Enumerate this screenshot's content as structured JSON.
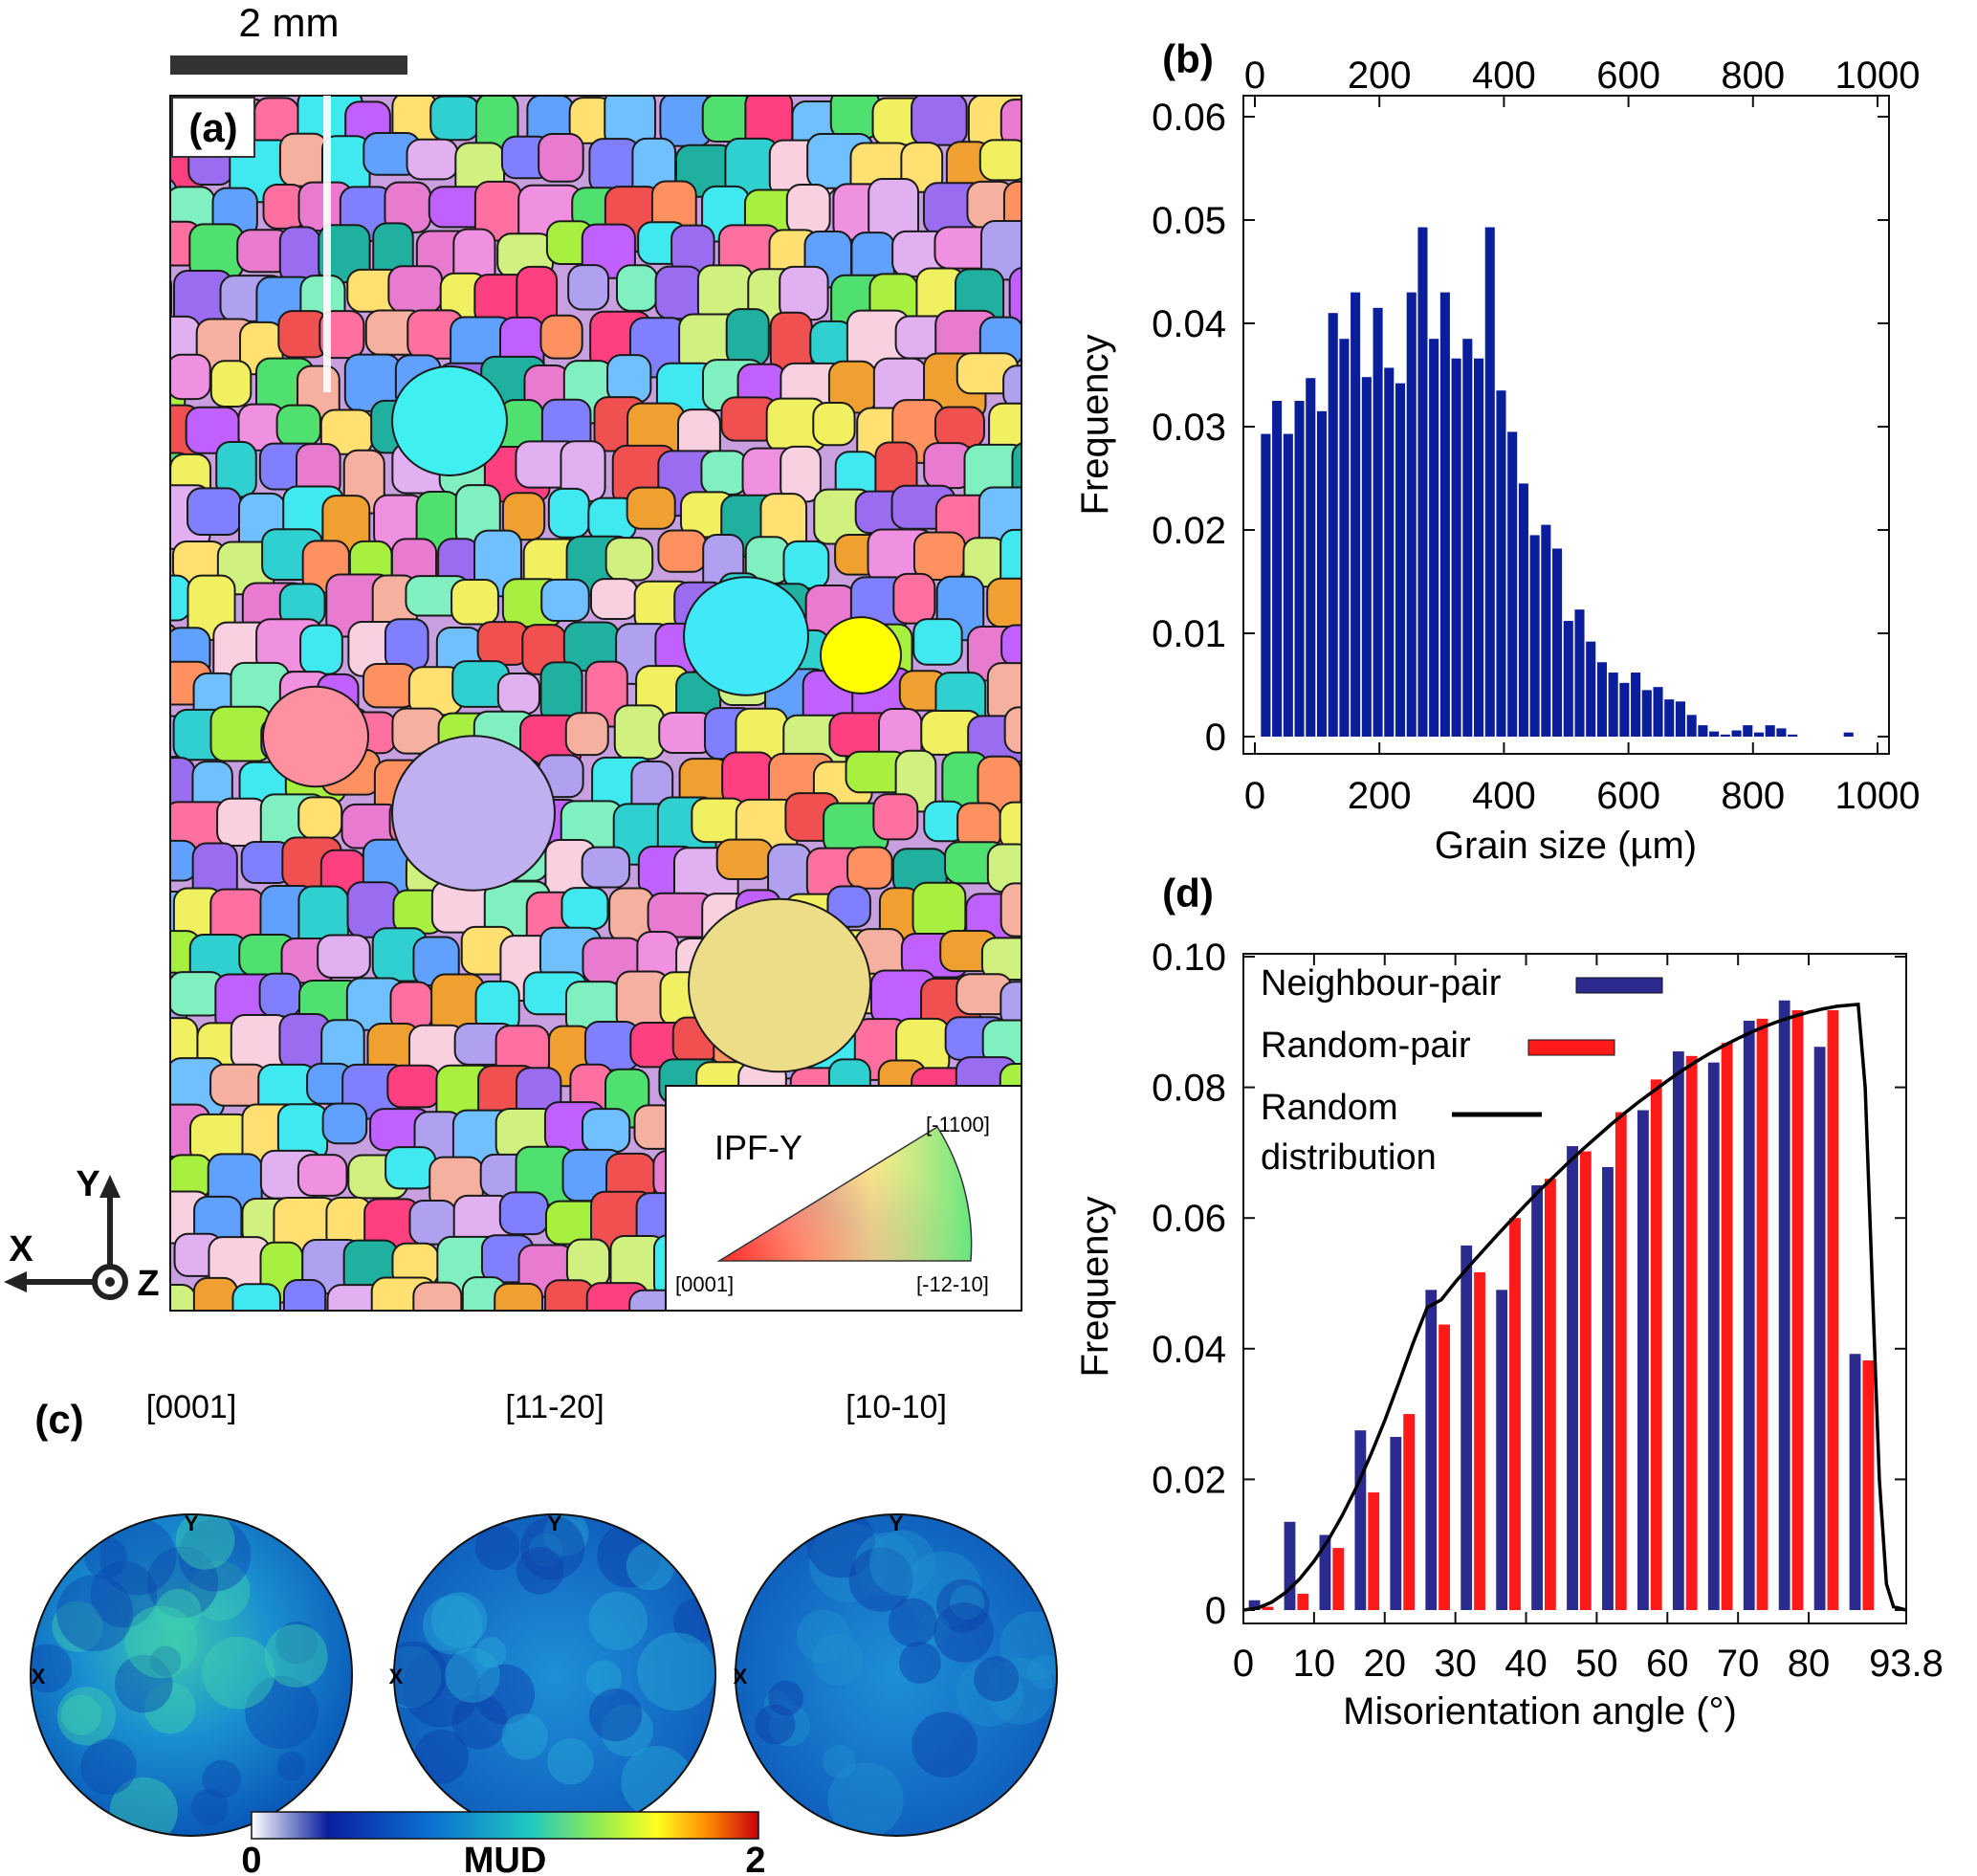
{
  "panel_a": {
    "panel_label": "(a)",
    "scale_bar_label": "2 mm",
    "ipf": {
      "title": "IPF-Y",
      "corner_left": "[0001]",
      "corner_right": "[-12-10]",
      "corner_top": "[-1100]"
    },
    "axes": {
      "x": "X",
      "y": "Y",
      "z": "Z"
    }
  },
  "panel_c": {
    "panel_label": "(c)",
    "poles": [
      {
        "title": "[0001]",
        "y_label": "Y",
        "x_label": "X"
      },
      {
        "title": "[11-20]",
        "y_label": "Y",
        "x_label": "X"
      },
      {
        "title": "[10-10]",
        "y_label": "Y",
        "x_label": "X"
      }
    ],
    "colorbar": {
      "min_label": "0",
      "max_label": "2",
      "label": "MUD"
    }
  },
  "chart_data": [
    {
      "panel": "(b)",
      "type": "bar",
      "xlabel": "Grain size (µm)",
      "ylabel": "Frequency",
      "xlim": [
        0,
        1000
      ],
      "ylim": [
        0,
        0.06
      ],
      "xticks": [
        "0",
        "200",
        "400",
        "600",
        "800",
        "1000"
      ],
      "yticks": [
        "0",
        "0.01",
        "0.02",
        "0.03",
        "0.04",
        "0.05",
        "0.06"
      ],
      "bar_color": "#0a1e9c",
      "x": [
        17.5,
        35.5,
        53.5,
        71.5,
        89.5,
        107.5,
        125.5,
        143.5,
        161.5,
        179.5,
        197.5,
        215.5,
        233.5,
        251.5,
        269.5,
        287.5,
        305.5,
        323.5,
        341.5,
        359.5,
        377.5,
        395.5,
        413.5,
        431.5,
        449.5,
        467.5,
        485.5,
        503.5,
        521.5,
        539.5,
        557.5,
        575.5,
        593.5,
        611.5,
        629.5,
        647.5,
        665.5,
        683.5,
        701.5,
        719.5,
        737.5,
        755.5,
        773.5,
        791.5,
        809.5,
        827.5,
        845.5,
        863.5,
        881.5,
        899.5,
        917.5,
        935.5,
        953.5
      ],
      "values": [
        0.0293,
        0.0325,
        0.0293,
        0.0325,
        0.0347,
        0.0315,
        0.041,
        0.0385,
        0.043,
        0.0348,
        0.0415,
        0.0357,
        0.0342,
        0.043,
        0.0493,
        0.0385,
        0.043,
        0.0366,
        0.0385,
        0.0366,
        0.0493,
        0.0335,
        0.0295,
        0.0245,
        0.0195,
        0.0205,
        0.0182,
        0.0112,
        0.0123,
        0.0092,
        0.0072,
        0.0062,
        0.0052,
        0.0062,
        0.0045,
        0.0048,
        0.0036,
        0.0034,
        0.0021,
        0.0011,
        0.0005,
        0.0002,
        0.0006,
        0.0011,
        0.0004,
        0.0011,
        0.0008,
        0.0002,
        0,
        0,
        0,
        0,
        0.0004
      ]
    },
    {
      "panel": "(d)",
      "type": "bar",
      "xlabel": "Misorientation angle (°)",
      "ylabel": "Frequency",
      "xlim": [
        0,
        93.8
      ],
      "ylim": [
        0,
        0.1
      ],
      "xticks": [
        "0",
        "10",
        "20",
        "30",
        "40",
        "50",
        "60",
        "70",
        "80",
        "93.8"
      ],
      "yticks": [
        "0",
        "0.02",
        "0.04",
        "0.06",
        "0.08",
        "0.10"
      ],
      "categories": [
        2.5,
        7.5,
        12.5,
        17.5,
        22.5,
        27.5,
        32.5,
        37.5,
        42.5,
        47.5,
        52.5,
        57.5,
        62.5,
        67.5,
        72.5,
        77.5,
        82.5,
        87.5
      ],
      "series": [
        {
          "name": "Neighbour-pair",
          "color": "#2b2b8f",
          "values": [
            0.0015,
            0.0135,
            0.0115,
            0.0275,
            0.0265,
            0.049,
            0.0558,
            0.049,
            0.065,
            0.071,
            0.0678,
            0.0765,
            0.0855,
            0.0838,
            0.0902,
            0.0933,
            0.0862,
            0.0392
          ]
        },
        {
          "name": "Random-pair",
          "color": "#ff1a1a",
          "values": [
            0.0005,
            0.0025,
            0.0095,
            0.018,
            0.03,
            0.0437,
            0.0517,
            0.06,
            0.066,
            0.0702,
            0.0762,
            0.0812,
            0.0848,
            0.0868,
            0.0905,
            0.0918,
            0.0918,
            0.0382
          ]
        },
        {
          "name": "Random distribution",
          "color": "#000000",
          "kind": "line",
          "x": [
            0,
            2,
            4,
            6,
            8,
            10,
            12,
            14,
            16,
            18,
            20,
            22,
            24,
            26,
            28,
            30,
            32,
            34,
            36,
            38,
            40,
            42,
            44,
            46,
            48,
            50,
            52,
            54,
            56,
            58,
            60,
            62,
            64,
            66,
            68,
            70,
            72,
            74,
            76,
            78,
            80,
            82,
            84,
            86,
            87,
            88,
            89,
            90,
            91,
            92,
            93.8
          ],
          "values": [
            0,
            0.0003,
            0.0012,
            0.0027,
            0.0048,
            0.0075,
            0.0107,
            0.0145,
            0.0188,
            0.0237,
            0.029,
            0.0348,
            0.0408,
            0.0463,
            0.0475,
            0.0502,
            0.0527,
            0.0551,
            0.0575,
            0.0598,
            0.0621,
            0.0643,
            0.0664,
            0.0685,
            0.0705,
            0.0724,
            0.0743,
            0.0761,
            0.0778,
            0.0794,
            0.081,
            0.0825,
            0.0839,
            0.0852,
            0.0864,
            0.0875,
            0.0885,
            0.0894,
            0.0902,
            0.0909,
            0.0915,
            0.092,
            0.0924,
            0.0926,
            0.0927,
            0.08,
            0.05,
            0.02,
            0.004,
            0.0005,
            0
          ]
        }
      ],
      "legend": {
        "placement": "top-left",
        "entries": [
          "Neighbour-pair",
          "Random-pair",
          "Random",
          "distribution"
        ]
      }
    }
  ]
}
